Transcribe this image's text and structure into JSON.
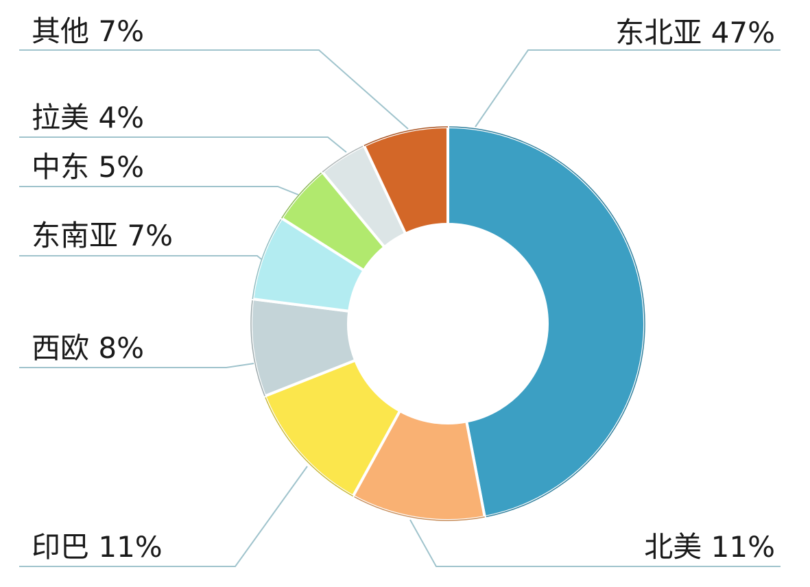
{
  "chart_data": {
    "type": "pie",
    "donut": true,
    "title": "",
    "start": "top, clockwise",
    "slices": [
      {
        "name": "东北亚",
        "value": 47,
        "label": "东北亚 47%",
        "color": "#3c9fc3"
      },
      {
        "name": "北美",
        "value": 11,
        "label": "北美 11%",
        "color": "#f9b173"
      },
      {
        "name": "印巴",
        "value": 11,
        "label": "印巴 11%",
        "color": "#fbe64c"
      },
      {
        "name": "西欧",
        "value": 8,
        "label": "西欧 8%",
        "color": "#c4d4d8"
      },
      {
        "name": "东南亚",
        "value": 7,
        "label": "东南亚 7%",
        "color": "#b3ecf1"
      },
      {
        "name": "中东",
        "value": 5,
        "label": "中东 5%",
        "color": "#b1e96e"
      },
      {
        "name": "拉美",
        "value": 4,
        "label": "拉美 4%",
        "color": "#dce5e6"
      },
      {
        "name": "其他",
        "value": 7,
        "label": "其他 7%",
        "color": "#d36728"
      }
    ],
    "leader_line_color": "#9fc3cc"
  }
}
